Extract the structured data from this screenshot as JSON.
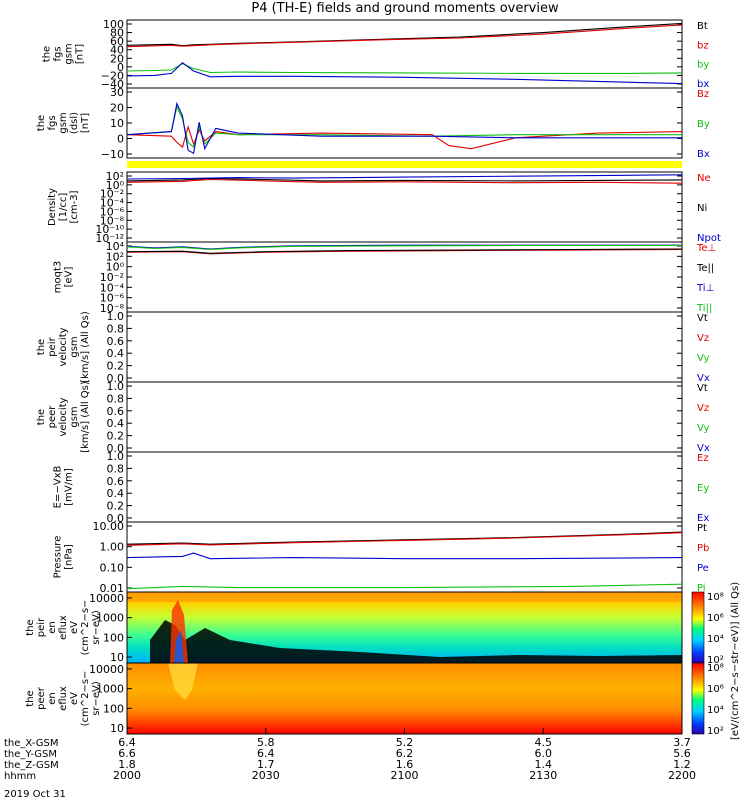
{
  "title": "P4 (TH-E) fields and ground moments overview",
  "colors": {
    "black": "#000000",
    "red": "#e00000",
    "green": "#10c010",
    "blue": "#0000cc",
    "yellow": "#ffff00"
  },
  "chart_data": {
    "type": "line",
    "x": {
      "tick_labels_hhmm": [
        "2000",
        "2030",
        "2100",
        "2130",
        "2200"
      ],
      "ephemeris_rows": [
        {
          "label": "the_X-GSM",
          "values": [
            "6.4",
            "5.8",
            "5.2",
            "4.5",
            "3.7"
          ]
        },
        {
          "label": "the_Y-GSM",
          "values": [
            "6.6",
            "6.4",
            "6.2",
            "6.0",
            "5.6"
          ]
        },
        {
          "label": "the_Z-GSM",
          "values": [
            "1.8",
            "1.7",
            "1.6",
            "1.4",
            "1.2"
          ]
        },
        {
          "label": "hhmm",
          "values": []
        }
      ],
      "date_label": "2019 Oct 31"
    },
    "panels": [
      {
        "id": "fgs-gsm",
        "ylabel": [
          "the",
          "fgs",
          "gsm",
          "[nT]"
        ],
        "yticks": [
          "100",
          "80",
          "60",
          "40",
          "20",
          "0",
          "−20",
          "−40"
        ],
        "ylim": [
          -40,
          100
        ],
        "legend": [
          "Bt",
          "bz",
          "by",
          "bx"
        ],
        "series": [
          {
            "name": "Bt",
            "color": "black",
            "x": [
              0,
              0.08,
              0.1,
              0.12,
              0.15,
              0.2,
              0.3,
              0.45,
              0.6,
              0.75,
              0.9,
              1
            ],
            "y": [
              48,
              50,
              47,
              49,
              50,
              52,
              55,
              60,
              65,
              74,
              86,
              93
            ]
          },
          {
            "name": "bz",
            "color": "red",
            "x": [
              0,
              0.08,
              0.1,
              0.12,
              0.15,
              0.2,
              0.3,
              0.45,
              0.6,
              0.75,
              0.9,
              1
            ],
            "y": [
              45,
              48,
              46,
              47,
              49,
              51,
              54,
              59,
              63,
              71,
              83,
              90
            ]
          },
          {
            "name": "by",
            "color": "green",
            "x": [
              0,
              0.05,
              0.08,
              0.1,
              0.12,
              0.15,
              0.2,
              0.3,
              0.5,
              0.7,
              0.9,
              1
            ],
            "y": [
              -5,
              -4,
              -3,
              10,
              0,
              -8,
              -7,
              -8,
              -9,
              -10,
              -10,
              -9
            ]
          },
          {
            "name": "bx",
            "color": "blue",
            "x": [
              0,
              0.05,
              0.08,
              0.1,
              0.12,
              0.15,
              0.2,
              0.3,
              0.5,
              0.7,
              0.9,
              1
            ],
            "y": [
              -15,
              -14,
              -10,
              12,
              -5,
              -17,
              -16,
              -16,
              -18,
              -22,
              -28,
              -31
            ]
          }
        ]
      },
      {
        "id": "fgs-dsl",
        "ylabel": [
          "the",
          "fgs",
          "gsm",
          "(dsl)",
          "[nT]"
        ],
        "yticks": [
          "30",
          "20",
          "10",
          "0",
          "−10"
        ],
        "ylim": [
          -15,
          30
        ],
        "legend": [
          "Bz",
          "By",
          "Bx"
        ],
        "series": [
          {
            "name": "Bz",
            "color": "red",
            "x": [
              0,
              0.08,
              0.09,
              0.1,
              0.11,
              0.12,
              0.13,
              0.14,
              0.16,
              0.2,
              0.35,
              0.55,
              0.58,
              0.62,
              0.7,
              0.85,
              1
            ],
            "y": [
              0,
              -1,
              -5,
              -8,
              5,
              -6,
              3,
              -4,
              2,
              0,
              1,
              0,
              -7,
              -9,
              -2,
              1,
              2
            ]
          },
          {
            "name": "By",
            "color": "green",
            "x": [
              0,
              0.08,
              0.09,
              0.1,
              0.11,
              0.12,
              0.13,
              0.14,
              0.16,
              0.2,
              0.35,
              0.55,
              0.7,
              0.85,
              1
            ],
            "y": [
              0,
              2,
              18,
              10,
              -5,
              -8,
              5,
              -6,
              1,
              0,
              0,
              -1,
              0,
              0,
              0
            ]
          },
          {
            "name": "Bx",
            "color": "blue",
            "x": [
              0,
              0.08,
              0.09,
              0.1,
              0.11,
              0.12,
              0.13,
              0.14,
              0.16,
              0.2,
              0.35,
              0.55,
              0.7,
              0.85,
              1
            ],
            "y": [
              0,
              2,
              20,
              12,
              -10,
              -12,
              8,
              -9,
              4,
              1,
              -1,
              -1,
              -2,
              -2,
              -2
            ]
          }
        ]
      },
      {
        "id": "density",
        "ylabel": [
          "Density",
          "[1/cc]",
          "[cm-3]"
        ],
        "yticks": [
          "10²",
          "10⁰",
          "10⁻²",
          "10⁻⁴",
          "10⁻⁶",
          "10⁻⁸",
          "10⁻¹⁰",
          "10⁻¹²"
        ],
        "ylim": [
          -12.5,
          2.5
        ],
        "log": true,
        "legend": [
          "Ne",
          "Ni",
          "Npot"
        ],
        "series": [
          {
            "name": "Ne",
            "color": "red",
            "x": [
              0,
              0.1,
              0.15,
              0.25,
              0.35,
              0.5,
              0.7,
              0.85,
              1
            ],
            "y": [
              0.3,
              0.5,
              0.9,
              0.6,
              0.3,
              0.4,
              0.2,
              0.3,
              0.1
            ]
          },
          {
            "name": "Ni",
            "color": "black",
            "x": [
              0,
              0.1,
              0.15,
              0.25,
              0.35,
              0.5,
              0.7,
              0.85,
              1
            ],
            "y": [
              0.6,
              0.8,
              1.1,
              0.9,
              0.6,
              0.7,
              0.6,
              0.7,
              0.8
            ]
          },
          {
            "name": "Npot",
            "color": "blue",
            "x": [
              0,
              0.1,
              0.2,
              0.3,
              0.5,
              0.7,
              0.9,
              1
            ],
            "y": [
              1,
              1.1,
              1.3,
              1.2,
              1.4,
              1.6,
              1.8,
              1.9
            ]
          }
        ]
      },
      {
        "id": "temperature",
        "ylabel": [
          "moqt3",
          "[eV]"
        ],
        "yticks": [
          "10⁴",
          "10²",
          "10⁰",
          "10⁻²",
          "10⁻⁴",
          "10⁻⁶",
          "10⁻⁸"
        ],
        "ylim": [
          -8.5,
          4.5
        ],
        "log": true,
        "legend": [
          "Te⊥",
          "Te||",
          "Ti⊥",
          "Ti||"
        ],
        "series": [
          {
            "name": "Te⊥",
            "color": "red",
            "x": [
              0,
              0.1,
              0.15,
              0.25,
              0.4,
              0.6,
              0.8,
              1
            ],
            "y": [
              2.6,
              2.7,
              2.3,
              2.6,
              2.8,
              2.9,
              3,
              3.1
            ]
          },
          {
            "name": "Te||",
            "color": "black",
            "x": [
              0,
              0.1,
              0.15,
              0.25,
              0.4,
              0.6,
              0.8,
              1
            ],
            "y": [
              2.7,
              2.8,
              2.4,
              2.7,
              2.9,
              3,
              3.1,
              3.2
            ]
          },
          {
            "name": "Ti⊥",
            "color": "blue",
            "x": [
              0,
              0.05,
              0.1,
              0.15,
              0.2,
              0.3,
              0.5,
              0.7,
              1
            ],
            "y": [
              3.7,
              3.4,
              3.6,
              3.2,
              3.5,
              3.8,
              3.9,
              3.9,
              3.9
            ]
          },
          {
            "name": "Ti||",
            "color": "green",
            "x": [
              0,
              0.05,
              0.1,
              0.15,
              0.2,
              0.3,
              0.5,
              0.7,
              1
            ],
            "y": [
              3.6,
              3.3,
              3.5,
              3.1,
              3.4,
              3.7,
              3.8,
              3.85,
              3.85
            ]
          }
        ]
      },
      {
        "id": "peir-velocity",
        "ylabel": [
          "the",
          "peir",
          "velocity",
          "gsm",
          "[km/s] (All Qs)"
        ],
        "yticks": [
          "1.0",
          "0.8",
          "0.6",
          "0.4",
          "0.2",
          "0.0"
        ],
        "ylim": [
          0,
          1
        ],
        "legend": [
          "Vt",
          "Vz",
          "Vy",
          "Vx"
        ],
        "series": []
      },
      {
        "id": "peer-velocity",
        "ylabel": [
          "the",
          "peer",
          "velocity",
          "gsm",
          "[km/s] (All Qs)"
        ],
        "yticks": [
          "1.0",
          "0.8",
          "0.6",
          "0.4",
          "0.2",
          "0.0"
        ],
        "ylim": [
          0,
          1
        ],
        "legend": [
          "Vt",
          "Vz",
          "Vy",
          "Vx"
        ],
        "series": []
      },
      {
        "id": "e-field",
        "ylabel": [
          "E=−VxB",
          "[mV/m]"
        ],
        "yticks": [
          "1.0",
          "0.8",
          "0.6",
          "0.4",
          "0.2",
          "0.0"
        ],
        "ylim": [
          0,
          1
        ],
        "legend": [
          "Ez",
          "Ey",
          "Ex"
        ],
        "series": []
      },
      {
        "id": "pressure",
        "ylabel": [
          "Pressure",
          "[nPa]"
        ],
        "yticks": [
          "10.00",
          "1.00",
          "0.10",
          "0.01"
        ],
        "ylim": [
          -2.1,
          1.05
        ],
        "log": true,
        "legend": [
          "Pt",
          "Pb",
          "Pe",
          "Pi"
        ],
        "series": [
          {
            "name": "Pt",
            "color": "black",
            "x": [
              0,
              0.1,
              0.15,
              0.3,
              0.5,
              0.7,
              0.9,
              1
            ],
            "y": [
              0.05,
              0.1,
              0.05,
              0.15,
              0.25,
              0.35,
              0.5,
              0.6
            ]
          },
          {
            "name": "Pb",
            "color": "red",
            "x": [
              0,
              0.1,
              0.15,
              0.3,
              0.5,
              0.7,
              0.9,
              1
            ],
            "y": [
              0,
              0.07,
              0.02,
              0.12,
              0.22,
              0.33,
              0.48,
              0.57
            ]
          },
          {
            "name": "Pe",
            "color": "blue",
            "x": [
              0,
              0.1,
              0.12,
              0.15,
              0.3,
              0.5,
              0.7,
              1
            ],
            "y": [
              -0.55,
              -0.5,
              -0.35,
              -0.6,
              -0.55,
              -0.6,
              -0.6,
              -0.55
            ]
          },
          {
            "name": "Pi",
            "color": "green",
            "x": [
              0,
              0.1,
              0.2,
              0.5,
              0.8,
              0.9,
              1
            ],
            "y": [
              -1.95,
              -1.85,
              -1.9,
              -1.9,
              -1.85,
              -1.8,
              -1.75
            ]
          }
        ]
      }
    ],
    "spectrograms": [
      {
        "id": "peir-en-eflux",
        "ylabel": [
          "the",
          "peir",
          "en",
          "eflux",
          "eV",
          "(cm^2−s−",
          "sr−eV)"
        ],
        "yticks": [
          "10000",
          "1000",
          "100",
          "10"
        ],
        "ylim_log10": [
          0.7,
          4.3
        ],
        "colorbar_label": "[eV/(cm^2−s−str−eV)] (All Qs)",
        "colorbar_ticks": [
          "10⁸",
          "10⁶",
          "10⁴",
          "10²"
        ]
      },
      {
        "id": "peer-en-eflux",
        "ylabel": [
          "the",
          "peer",
          "en",
          "eflux",
          "eV",
          "(cm^2−s−",
          "sr−eV)"
        ],
        "yticks": [
          "10000",
          "1000",
          "100",
          "10"
        ],
        "ylim_log10": [
          0.7,
          4.3
        ],
        "colorbar_label": "[eV/(cm^2−s−str−eV)] (All Qs)",
        "colorbar_ticks": [
          "10⁸",
          "10⁶",
          "10⁴",
          "10²"
        ]
      }
    ]
  }
}
